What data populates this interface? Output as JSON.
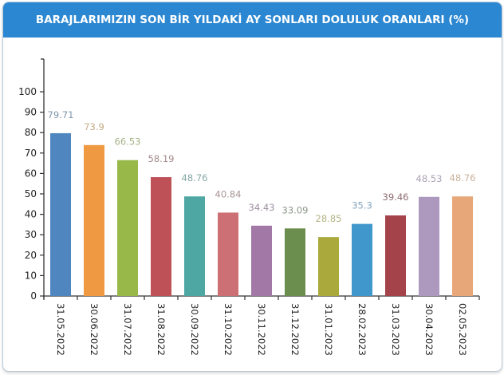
{
  "chart_data": {
    "type": "bar",
    "title": "BARAJLARIMIZIN SON BİR YILDAKİ AY SONLARI DOLULUK ORANLARI (%)",
    "xlabel": "",
    "ylabel": "",
    "ylim": [
      0,
      100
    ],
    "yticks": [
      0,
      10,
      20,
      30,
      40,
      50,
      60,
      70,
      80,
      90,
      100
    ],
    "categories": [
      "31.05.2022",
      "30.06.2022",
      "31.07.2022",
      "31.08.2022",
      "30.09.2022",
      "31.10.2022",
      "30.11.2022",
      "31.12.2022",
      "31.01.2023",
      "28.02.2023",
      "31.03.2023",
      "30.04.2023",
      "02.05.2023"
    ],
    "values": [
      79.71,
      73.9,
      66.53,
      58.19,
      48.76,
      40.84,
      34.43,
      33.09,
      28.85,
      35.3,
      39.46,
      48.53,
      48.76
    ],
    "value_labels": [
      "79.71",
      "73.9",
      "66.53",
      "58.19",
      "48.76",
      "40.84",
      "34.43",
      "33.09",
      "28.85",
      "35.3",
      "39.46",
      "48.53",
      "48.76"
    ],
    "colors": [
      "#4f86c0",
      "#ef9a42",
      "#98b84a",
      "#be5158",
      "#4ea7a3",
      "#cd7076",
      "#a278a6",
      "#6b8d4d",
      "#aaa93c",
      "#3f97cb",
      "#a5434b",
      "#ac99bd",
      "#e8a779"
    ],
    "label_colors": [
      "#7f95ad",
      "#c3ab86",
      "#a6b386",
      "#a48a8c",
      "#86a8a6",
      "#a89496",
      "#9d8fa1",
      "#8c988a",
      "#b4b387",
      "#86a7bf",
      "#8e6c72",
      "#ada3b8",
      "#c9b39d"
    ],
    "grid": false,
    "legend": "none"
  }
}
